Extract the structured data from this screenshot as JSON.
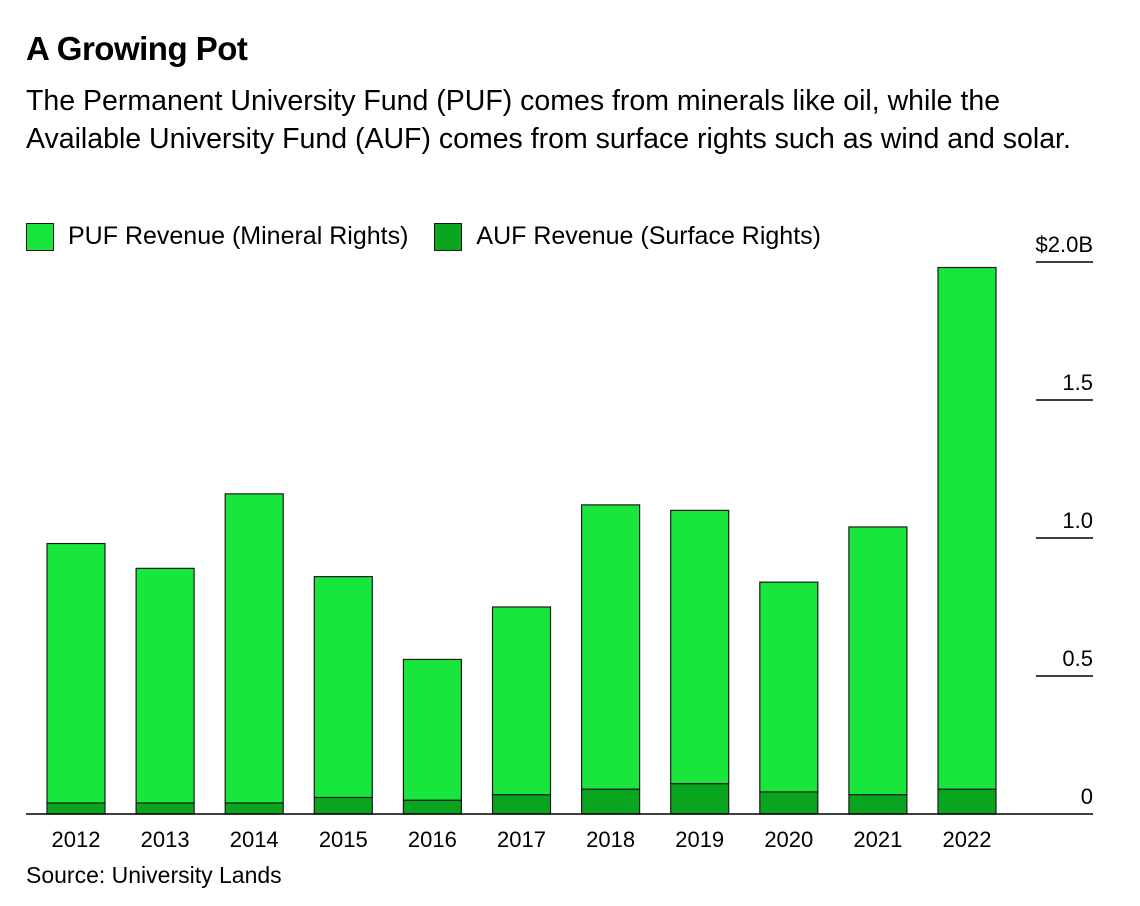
{
  "header": {
    "title": "A Growing Pot",
    "subtitle": "The Permanent University Fund (PUF) comes from minerals like oil, while the Available University Fund (AUF) comes from surface rights such as wind and solar."
  },
  "footer": {
    "source": "Source: University Lands"
  },
  "chart_data": {
    "type": "bar",
    "stacked": true,
    "categories": [
      "2012",
      "2013",
      "2014",
      "2015",
      "2016",
      "2017",
      "2018",
      "2019",
      "2020",
      "2021",
      "2022"
    ],
    "series": [
      {
        "name": "AUF Revenue (Surface Rights)",
        "color": "#0aa51e",
        "values": [
          0.04,
          0.04,
          0.04,
          0.06,
          0.05,
          0.07,
          0.09,
          0.11,
          0.08,
          0.07,
          0.09
        ]
      },
      {
        "name": "PUF Revenue (Mineral Rights)",
        "color": "#19e63c",
        "values": [
          0.94,
          0.85,
          1.12,
          0.8,
          0.51,
          0.68,
          1.03,
          0.99,
          0.76,
          0.97,
          1.89
        ]
      }
    ],
    "legend_order": [
      "PUF Revenue (Mineral Rights)",
      "AUF Revenue (Surface Rights)"
    ],
    "y_axis": {
      "position": "right",
      "ylim": [
        0,
        2.0
      ],
      "ticks": [
        0,
        0.5,
        1.0,
        1.5,
        2.0
      ],
      "tick_labels": [
        "0",
        "0.5",
        "1.0",
        "1.5",
        "$2.0B"
      ]
    },
    "legend_placement": "top-left",
    "grid": false
  }
}
